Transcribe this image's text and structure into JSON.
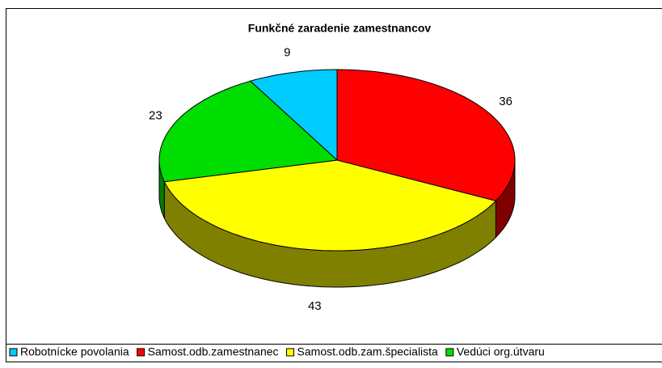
{
  "chart_data": {
    "type": "pie",
    "title": "Funkčné zaradenie zamestnancov",
    "categories": [
      "Robotnícke povolania",
      "Samost.odb.zamestnanec",
      "Samost.odb.zam.špecialista",
      "Vedúci org.útvaru"
    ],
    "values": [
      9,
      36,
      43,
      23
    ],
    "colors": [
      "#00ccff",
      "#ff0000",
      "#ffff00",
      "#00dd00"
    ],
    "side_colors": [
      "#007a99",
      "#800000",
      "#808000",
      "#007f00"
    ],
    "legend": "bottom"
  }
}
